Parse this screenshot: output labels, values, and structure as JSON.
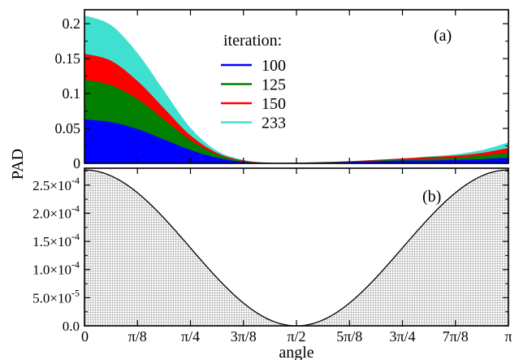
{
  "colors": {
    "series_100": "#0000ff",
    "series_125": "#007f00",
    "series_150": "#ff0000",
    "series_233": "#40e0d0",
    "panel_b_fill": "#d6d6d6",
    "panel_b_line": "#000000"
  },
  "chart_data": [
    {
      "type": "area",
      "panel_label": "(a)",
      "ylabel": "PAD",
      "xlim": [
        0,
        3.14159
      ],
      "ylim": [
        0,
        0.22
      ],
      "yticks": [
        0,
        0.05,
        0.1,
        0.15,
        0.2
      ],
      "ytick_labels": [
        "0",
        "0.05",
        "0.1",
        "0.15",
        "0.2"
      ],
      "legend_title": "iteration:",
      "legend_position": "top-center",
      "x": [
        "0",
        "π/16",
        "π/8",
        "3π/16",
        "π/4",
        "5π/16",
        "3π/8",
        "7π/16",
        "π/2",
        "9π/16",
        "5π/8",
        "11π/16",
        "3π/4",
        "13π/16",
        "7π/8",
        "15π/16",
        "π"
      ],
      "series": [
        {
          "name": "100",
          "values": [
            0.063,
            0.059,
            0.049,
            0.034,
            0.019,
            0.008,
            0.002,
            0.0005,
            0.0005,
            0.001,
            0.002,
            0.003,
            0.004,
            0.004,
            0.005,
            0.006,
            0.008
          ]
        },
        {
          "name": "125",
          "values": [
            0.12,
            0.112,
            0.092,
            0.063,
            0.033,
            0.013,
            0.003,
            0.0006,
            0.0007,
            0.0015,
            0.0025,
            0.004,
            0.0055,
            0.0065,
            0.008,
            0.011,
            0.015
          ]
        },
        {
          "name": "150",
          "values": [
            0.157,
            0.147,
            0.118,
            0.079,
            0.04,
            0.015,
            0.004,
            0.0008,
            0.0009,
            0.0018,
            0.003,
            0.005,
            0.007,
            0.009,
            0.011,
            0.015,
            0.022
          ]
        },
        {
          "name": "233",
          "values": [
            0.212,
            0.198,
            0.158,
            0.104,
            0.051,
            0.018,
            0.005,
            0.001,
            0.001,
            0.002,
            0.003,
            0.005,
            0.007,
            0.01,
            0.013,
            0.019,
            0.03
          ]
        }
      ]
    },
    {
      "type": "area",
      "panel_label": "(b)",
      "xlabel": "angle",
      "xlim": [
        0,
        3.14159
      ],
      "ylim": [
        0,
        0.00028
      ],
      "yticks": [
        0,
        5e-05,
        0.0001,
        0.00015,
        0.0002,
        0.00025
      ],
      "ytick_labels": [
        {
          "mant": "0.0",
          "exp": ""
        },
        {
          "mant": "5.0×10",
          "exp": "-5"
        },
        {
          "mant": "1.0×10",
          "exp": "-4"
        },
        {
          "mant": "1.5×10",
          "exp": "-4"
        },
        {
          "mant": "2.0×10",
          "exp": "-4"
        },
        {
          "mant": "2.5×10",
          "exp": "-4"
        }
      ],
      "xticks": [
        0,
        0.392699,
        0.785398,
        1.178097,
        1.570796,
        1.963495,
        2.356194,
        2.748894,
        3.14159
      ],
      "xtick_labels": [
        "0",
        "π/8",
        "π/4",
        "3π/8",
        "π/2",
        "5π/8",
        "3π/4",
        "7π/8",
        "π"
      ],
      "series": [
        {
          "curve": "cos^2",
          "peak": 0.000277
        }
      ]
    }
  ]
}
